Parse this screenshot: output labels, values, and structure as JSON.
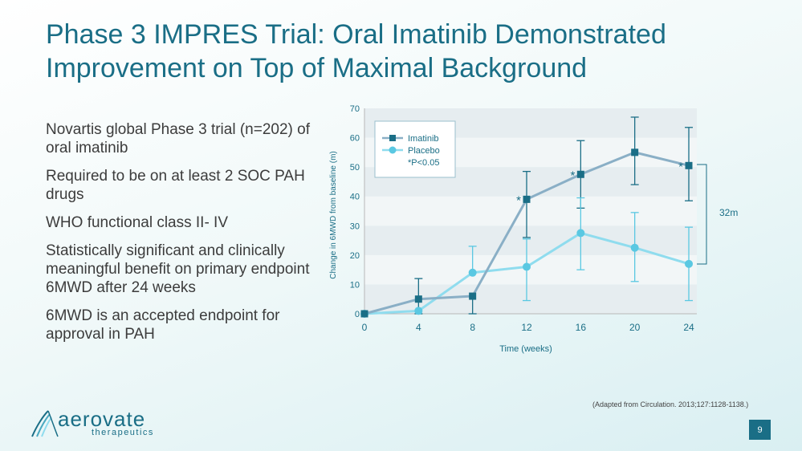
{
  "title": "Phase 3 IMPRES Trial: Oral Imatinib Demonstrated Improvement on Top of Maximal Background",
  "bullets": [
    "Novartis global Phase 3 trial (n=202) of oral imatinib",
    "Required to be on at least 2 SOC PAH drugs",
    "WHO functional class II- IV",
    "Statistically significant and clinically meaningful benefit on primary endpoint 6MWD after 24 weeks",
    "6MWD is an accepted endpoint for approval in PAH"
  ],
  "source": "(Adapted from Circulation. 2013;127:1128-1138.)",
  "page_number": "9",
  "logo": {
    "name": "aerovate",
    "sub": "therapeutics"
  },
  "chart_data": {
    "type": "line",
    "xlabel": "Time (weeks)",
    "ylabel": "Change in 6MWD from baseline (m)",
    "x": [
      0,
      4,
      8,
      12,
      16,
      20,
      24
    ],
    "xticks": [
      "0",
      "4",
      "8",
      "12",
      "16",
      "20",
      "24"
    ],
    "yticks": [
      "0",
      "10",
      "20",
      "30",
      "40",
      "50",
      "60",
      "70"
    ],
    "xlim": [
      0,
      24
    ],
    "ylim": [
      0,
      70
    ],
    "series": [
      {
        "name": "Imatinib",
        "color": "#8aafc6",
        "marker_color": "#1a6e86",
        "marker": "square",
        "values": [
          0,
          5,
          6,
          39,
          47.5,
          55,
          50.5
        ],
        "err_low": [
          null,
          0,
          0,
          26,
          36,
          44,
          38.5
        ],
        "err_high": [
          null,
          12,
          null,
          48.5,
          59,
          67,
          63.5
        ],
        "significant": [
          false,
          false,
          false,
          true,
          true,
          false,
          true
        ]
      },
      {
        "name": "Placebo",
        "color": "#8fdcee",
        "marker_color": "#5ac8e2",
        "marker": "circle",
        "values": [
          0,
          1,
          14,
          16,
          27.5,
          22.5,
          17
        ],
        "err_low": [
          null,
          null,
          null,
          4.5,
          15,
          11,
          4.5
        ],
        "err_high": [
          null,
          null,
          23,
          25.5,
          39.5,
          34.5,
          29.5
        ],
        "significant": [
          false,
          false,
          false,
          false,
          false,
          false,
          false
        ]
      }
    ],
    "significance_note": "*P<0.05",
    "significance_marker": "*",
    "annotation": "32m"
  }
}
